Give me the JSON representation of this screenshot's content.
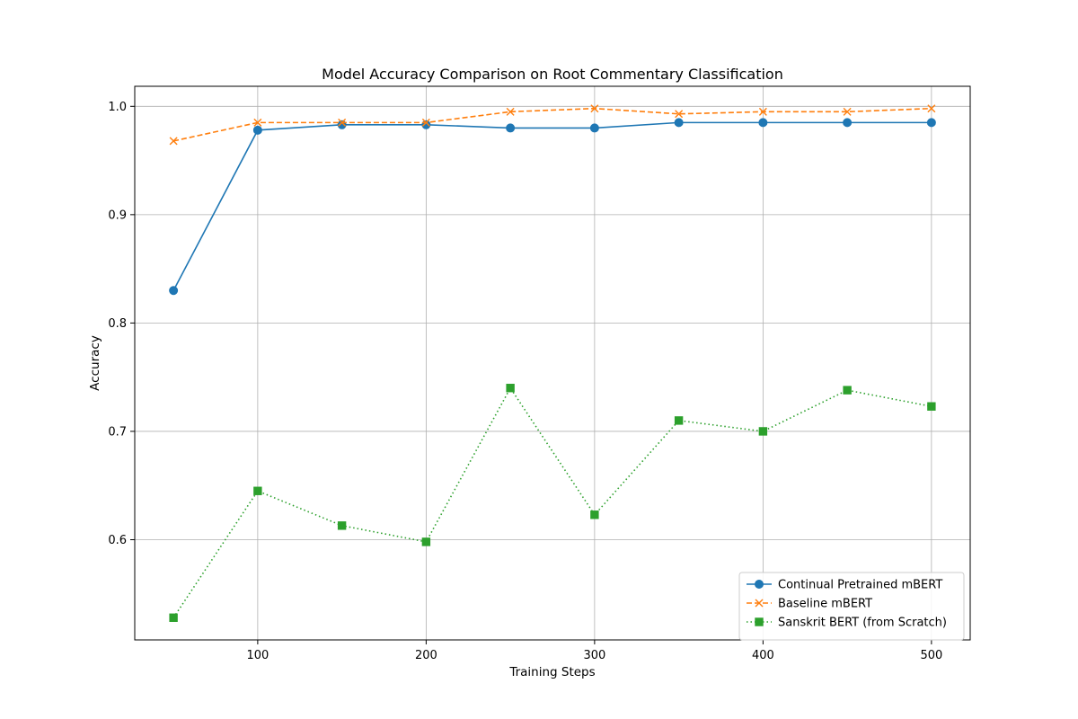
{
  "chart_data": {
    "type": "line",
    "title": "Model Accuracy Comparison on Root Commentary Classification",
    "xlabel": "Training Steps",
    "ylabel": "Accuracy",
    "xlim": [
      27,
      523
    ],
    "ylim": [
      0.5075,
      1.0185
    ],
    "xticks": [
      100,
      200,
      300,
      400,
      500
    ],
    "yticks": [
      0.6,
      0.7,
      0.8,
      0.9,
      1.0
    ],
    "xtick_labels": [
      "100",
      "200",
      "300",
      "400",
      "500"
    ],
    "ytick_labels": [
      "0.6",
      "0.7",
      "0.8",
      "0.9",
      "1.0"
    ],
    "grid": true,
    "legend_position": "lower-right",
    "x": [
      50,
      100,
      150,
      200,
      250,
      300,
      350,
      400,
      450,
      500
    ],
    "series": [
      {
        "name": "Continual Pretrained mBERT",
        "color": "#1f77b4",
        "line_style": "solid",
        "marker": "circle",
        "values": [
          0.83,
          0.978,
          0.983,
          0.983,
          0.98,
          0.98,
          0.985,
          0.985,
          0.985,
          0.985
        ]
      },
      {
        "name": "Baseline mBERT",
        "color": "#ff7f0e",
        "line_style": "dashed",
        "marker": "x",
        "values": [
          0.968,
          0.985,
          0.985,
          0.985,
          0.995,
          0.998,
          0.993,
          0.995,
          0.995,
          0.998
        ]
      },
      {
        "name": "Sanskrit BERT (from Scratch)",
        "color": "#2ca02c",
        "line_style": "dotted",
        "marker": "square",
        "values": [
          0.528,
          0.645,
          0.613,
          0.598,
          0.74,
          0.623,
          0.71,
          0.7,
          0.738,
          0.723
        ]
      }
    ]
  }
}
